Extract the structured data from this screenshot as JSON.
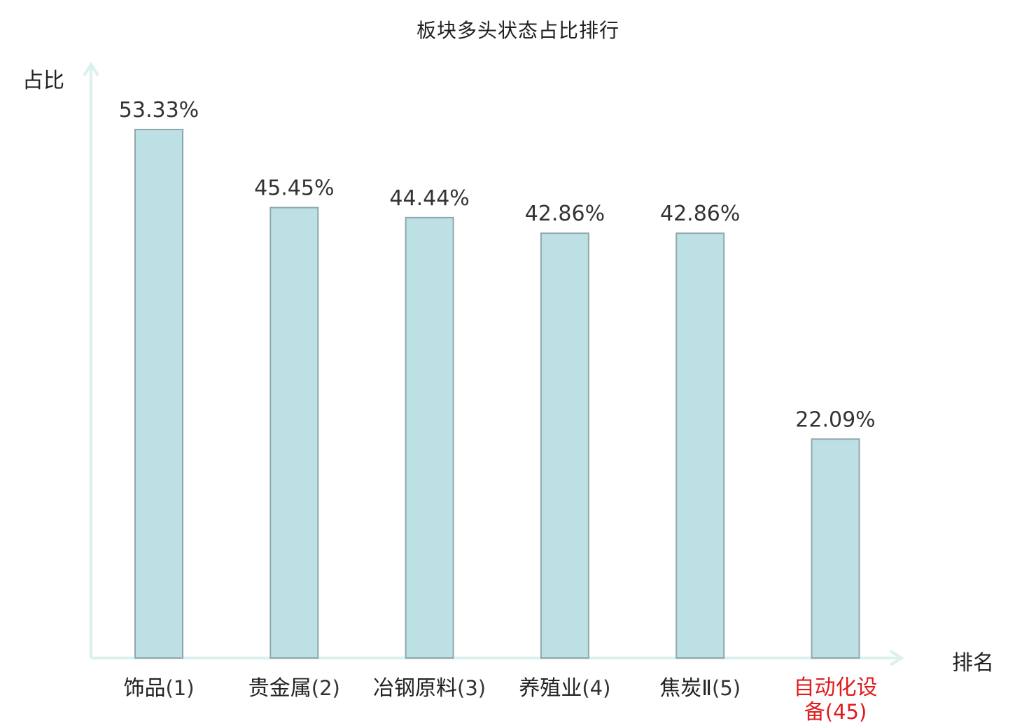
{
  "chart_data": {
    "type": "bar",
    "title": "板块多头状态占比排行",
    "ylabel": "占比",
    "xlabel": "排名",
    "ylim": [
      0,
      60
    ],
    "grid": false,
    "categories": [
      {
        "name": "饰品",
        "rank": "(1)",
        "highlight": false
      },
      {
        "name": "贵金属",
        "rank": "(2)",
        "highlight": false
      },
      {
        "name": "冶钢原料",
        "rank": "(3)",
        "highlight": false
      },
      {
        "name": "养殖业",
        "rank": "(4)",
        "highlight": false
      },
      {
        "name": "焦炭Ⅱ",
        "rank": "(5)",
        "highlight": false
      },
      {
        "name": "自动化设备",
        "rank": "(45)",
        "highlight": true
      }
    ],
    "values": [
      53.33,
      45.45,
      44.44,
      42.86,
      42.86,
      22.09
    ],
    "value_labels": [
      "53.33%",
      "45.45%",
      "44.44%",
      "42.86%",
      "42.86%",
      "22.09%"
    ],
    "colors": {
      "bar_fill": "#bce0e3",
      "bar_stroke": "#8fa8ab",
      "axis": "#dcf0ee",
      "highlight_text": "#e01b1b"
    }
  }
}
